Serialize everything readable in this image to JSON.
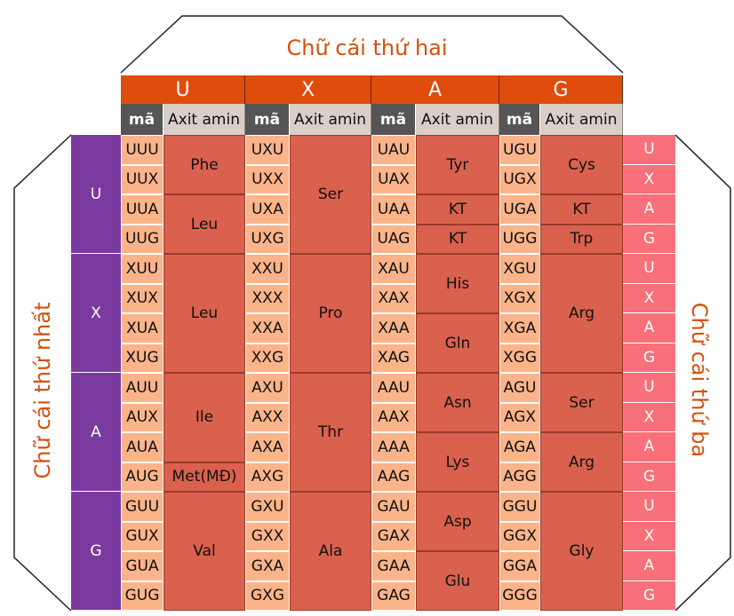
{
  "titles": {
    "second": "Chữ cái thứ hai",
    "first": "Chữ cái thứ nhất",
    "third": "Chữ cái thứ ba"
  },
  "colors": {
    "header": "#e04c0c",
    "first_letter": "#7a3aa0",
    "codon": "#fbb48a",
    "amino_acid": "#d9614e",
    "third_letter": "#f7707a",
    "title_text": "#d4500c"
  },
  "subheaders": {
    "codon": "mã",
    "amino": "Axit amin"
  },
  "second_letters": [
    "U",
    "X",
    "A",
    "G"
  ],
  "first_letters": [
    "U",
    "X",
    "A",
    "G"
  ],
  "third_letters": [
    "U",
    "X",
    "A",
    "G"
  ],
  "blocks": [
    {
      "columns": [
        {
          "codons": [
            "UUU",
            "UUX",
            "UUA",
            "UUG"
          ],
          "groups": [
            {
              "label": "Phe",
              "span": 2
            },
            {
              "label": "Leu",
              "span": 2
            }
          ]
        },
        {
          "codons": [
            "UXU",
            "UXX",
            "UXA",
            "UXG"
          ],
          "groups": [
            {
              "label": "Ser",
              "span": 4
            }
          ]
        },
        {
          "codons": [
            "UAU",
            "UAX",
            "UAA",
            "UAG"
          ],
          "groups": [
            {
              "label": "Tyr",
              "span": 2
            },
            {
              "label": "KT",
              "span": 1
            },
            {
              "label": "KT",
              "span": 1
            }
          ]
        },
        {
          "codons": [
            "UGU",
            "UGX",
            "UGA",
            "UGG"
          ],
          "groups": [
            {
              "label": "Cys",
              "span": 2
            },
            {
              "label": "KT",
              "span": 1
            },
            {
              "label": "Trp",
              "span": 1
            }
          ]
        }
      ]
    },
    {
      "columns": [
        {
          "codons": [
            "XUU",
            "XUX",
            "XUA",
            "XUG"
          ],
          "groups": [
            {
              "label": "Leu",
              "span": 4
            }
          ]
        },
        {
          "codons": [
            "XXU",
            "XXX",
            "XXA",
            "XXG"
          ],
          "groups": [
            {
              "label": "Pro",
              "span": 4
            }
          ]
        },
        {
          "codons": [
            "XAU",
            "XAX",
            "XAA",
            "XAG"
          ],
          "groups": [
            {
              "label": "His",
              "span": 2
            },
            {
              "label": "Gln",
              "span": 2
            }
          ]
        },
        {
          "codons": [
            "XGU",
            "XGX",
            "XGA",
            "XGG"
          ],
          "groups": [
            {
              "label": "Arg",
              "span": 4
            }
          ]
        }
      ]
    },
    {
      "columns": [
        {
          "codons": [
            "AUU",
            "AUX",
            "AUA",
            "AUG"
          ],
          "groups": [
            {
              "label": "Ile",
              "span": 3
            },
            {
              "label": "Met(MĐ)",
              "span": 1
            }
          ]
        },
        {
          "codons": [
            "AXU",
            "AXX",
            "AXA",
            "AXG"
          ],
          "groups": [
            {
              "label": "Thr",
              "span": 4
            }
          ]
        },
        {
          "codons": [
            "AAU",
            "AAX",
            "AAA",
            "AAG"
          ],
          "groups": [
            {
              "label": "Asn",
              "span": 2
            },
            {
              "label": "Lys",
              "span": 2
            }
          ]
        },
        {
          "codons": [
            "AGU",
            "AGX",
            "AGA",
            "AGG"
          ],
          "groups": [
            {
              "label": "Ser",
              "span": 2
            },
            {
              "label": "Arg",
              "span": 2
            }
          ]
        }
      ]
    },
    {
      "columns": [
        {
          "codons": [
            "GUU",
            "GUX",
            "GUA",
            "GUG"
          ],
          "groups": [
            {
              "label": "Val",
              "span": 4
            }
          ]
        },
        {
          "codons": [
            "GXU",
            "GXX",
            "GXA",
            "GXG"
          ],
          "groups": [
            {
              "label": "Ala",
              "span": 4
            }
          ]
        },
        {
          "codons": [
            "GAU",
            "GAX",
            "GAA",
            "GAG"
          ],
          "groups": [
            {
              "label": "Asp",
              "span": 2
            },
            {
              "label": "Glu",
              "span": 2
            }
          ]
        },
        {
          "codons": [
            "GGU",
            "GGX",
            "GGA",
            "GGG"
          ],
          "groups": [
            {
              "label": "Gly",
              "span": 4
            }
          ]
        }
      ]
    }
  ]
}
